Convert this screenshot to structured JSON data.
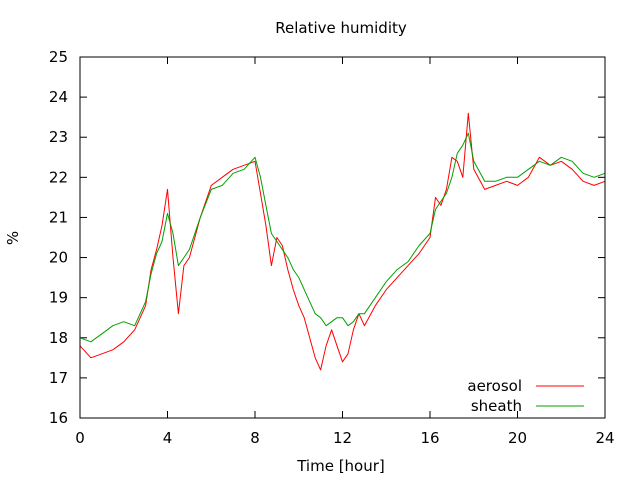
{
  "chart_data": {
    "type": "line",
    "title": "Relative humidity",
    "xlabel": "Time [hour]",
    "ylabel": "%",
    "xlim": [
      0,
      24
    ],
    "ylim": [
      16,
      25
    ],
    "xticks": [
      0,
      4,
      8,
      12,
      16,
      20,
      24
    ],
    "yticks": [
      16,
      17,
      18,
      19,
      20,
      21,
      22,
      23,
      24,
      25
    ],
    "grid": false,
    "legend_position": "bottom-right",
    "series": [
      {
        "name": "aerosol",
        "color": "#ff0000",
        "x": [
          0,
          0.5,
          1,
          1.5,
          2,
          2.5,
          3,
          3.25,
          3.5,
          3.75,
          4,
          4.25,
          4.5,
          4.75,
          5,
          5.5,
          6,
          6.5,
          7,
          7.5,
          8,
          8.25,
          8.5,
          8.75,
          9,
          9.25,
          9.5,
          9.75,
          10,
          10.25,
          10.5,
          10.75,
          11,
          11.25,
          11.5,
          11.75,
          12,
          12.25,
          12.5,
          12.75,
          13,
          13.5,
          14,
          14.5,
          15,
          15.5,
          16,
          16.25,
          16.5,
          16.75,
          17,
          17.25,
          17.5,
          17.75,
          18,
          18.5,
          19,
          19.5,
          20,
          20.5,
          21,
          21.5,
          22,
          22.5,
          23,
          23.5,
          24
        ],
        "y": [
          17.8,
          17.5,
          17.6,
          17.7,
          17.9,
          18.2,
          18.8,
          19.7,
          20.2,
          20.8,
          21.7,
          20.0,
          18.6,
          19.8,
          20.0,
          21.0,
          21.8,
          22.0,
          22.2,
          22.3,
          22.4,
          21.6,
          20.8,
          19.8,
          20.5,
          20.3,
          19.7,
          19.2,
          18.8,
          18.5,
          18.0,
          17.5,
          17.2,
          17.8,
          18.2,
          17.8,
          17.4,
          17.6,
          18.2,
          18.6,
          18.3,
          18.8,
          19.2,
          19.5,
          19.8,
          20.1,
          20.5,
          21.5,
          21.3,
          21.7,
          22.5,
          22.4,
          22.0,
          23.6,
          22.2,
          21.7,
          21.8,
          21.9,
          21.8,
          22.0,
          22.5,
          22.3,
          22.4,
          22.2,
          21.9,
          21.8,
          21.9
        ]
      },
      {
        "name": "sheath",
        "color": "#00a000",
        "x": [
          0,
          0.5,
          1,
          1.5,
          2,
          2.5,
          3,
          3.25,
          3.5,
          3.75,
          4,
          4.25,
          4.5,
          4.75,
          5,
          5.5,
          6,
          6.5,
          7,
          7.5,
          8,
          8.25,
          8.5,
          8.75,
          9,
          9.25,
          9.5,
          9.75,
          10,
          10.25,
          10.5,
          10.75,
          11,
          11.25,
          11.5,
          11.75,
          12,
          12.25,
          12.5,
          12.75,
          13,
          13.5,
          14,
          14.5,
          15,
          15.5,
          16,
          16.25,
          16.5,
          16.75,
          17,
          17.25,
          17.5,
          17.75,
          18,
          18.5,
          19,
          19.5,
          20,
          20.5,
          21,
          21.5,
          22,
          22.5,
          23,
          23.5,
          24
        ],
        "y": [
          18.0,
          17.9,
          18.1,
          18.3,
          18.4,
          18.3,
          18.9,
          19.6,
          20.1,
          20.4,
          21.1,
          20.6,
          19.8,
          20.0,
          20.2,
          21.0,
          21.7,
          21.8,
          22.1,
          22.2,
          22.5,
          22.0,
          21.3,
          20.6,
          20.4,
          20.2,
          20.0,
          19.7,
          19.5,
          19.2,
          18.9,
          18.6,
          18.5,
          18.3,
          18.4,
          18.5,
          18.5,
          18.3,
          18.4,
          18.6,
          18.6,
          19.0,
          19.4,
          19.7,
          19.9,
          20.3,
          20.6,
          21.2,
          21.4,
          21.6,
          22.0,
          22.6,
          22.8,
          23.1,
          22.4,
          21.9,
          21.9,
          22.0,
          22.0,
          22.2,
          22.4,
          22.3,
          22.5,
          22.4,
          22.1,
          22.0,
          22.1
        ]
      }
    ]
  }
}
